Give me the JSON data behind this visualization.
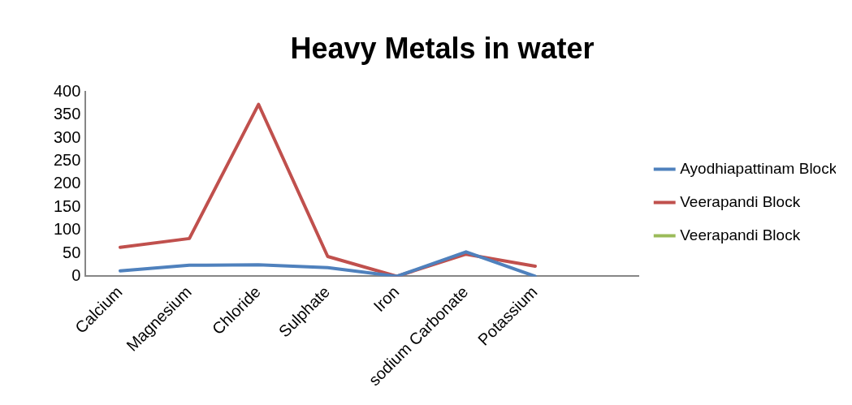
{
  "chart_data": {
    "type": "line",
    "title": "Heavy Metals in water",
    "categories": [
      "Calcium",
      "Magnesium",
      "Chloride",
      "Sulphate",
      "Iron",
      "sodium Carbonate",
      "Potassium",
      null
    ],
    "series": [
      {
        "name": "Ayodhiapattinam Block",
        "color": "#4f81bd",
        "values": [
          12,
          24,
          25,
          19,
          0,
          53,
          0,
          null
        ]
      },
      {
        "name": "Veerapandi Block",
        "color": "#c0504d",
        "values": [
          63,
          82,
          373,
          43,
          0,
          48,
          22,
          null
        ]
      },
      {
        "name": "Veerapandi Block",
        "color": "#9bbb59",
        "values": [
          null,
          null,
          null,
          null,
          null,
          null,
          null,
          null
        ]
      }
    ],
    "ylim": [
      0,
      400
    ],
    "yticks": [
      0,
      50,
      100,
      150,
      200,
      250,
      300,
      350,
      400
    ],
    "grid": false,
    "legend": "right",
    "marker": "none",
    "line_style": "solid"
  }
}
